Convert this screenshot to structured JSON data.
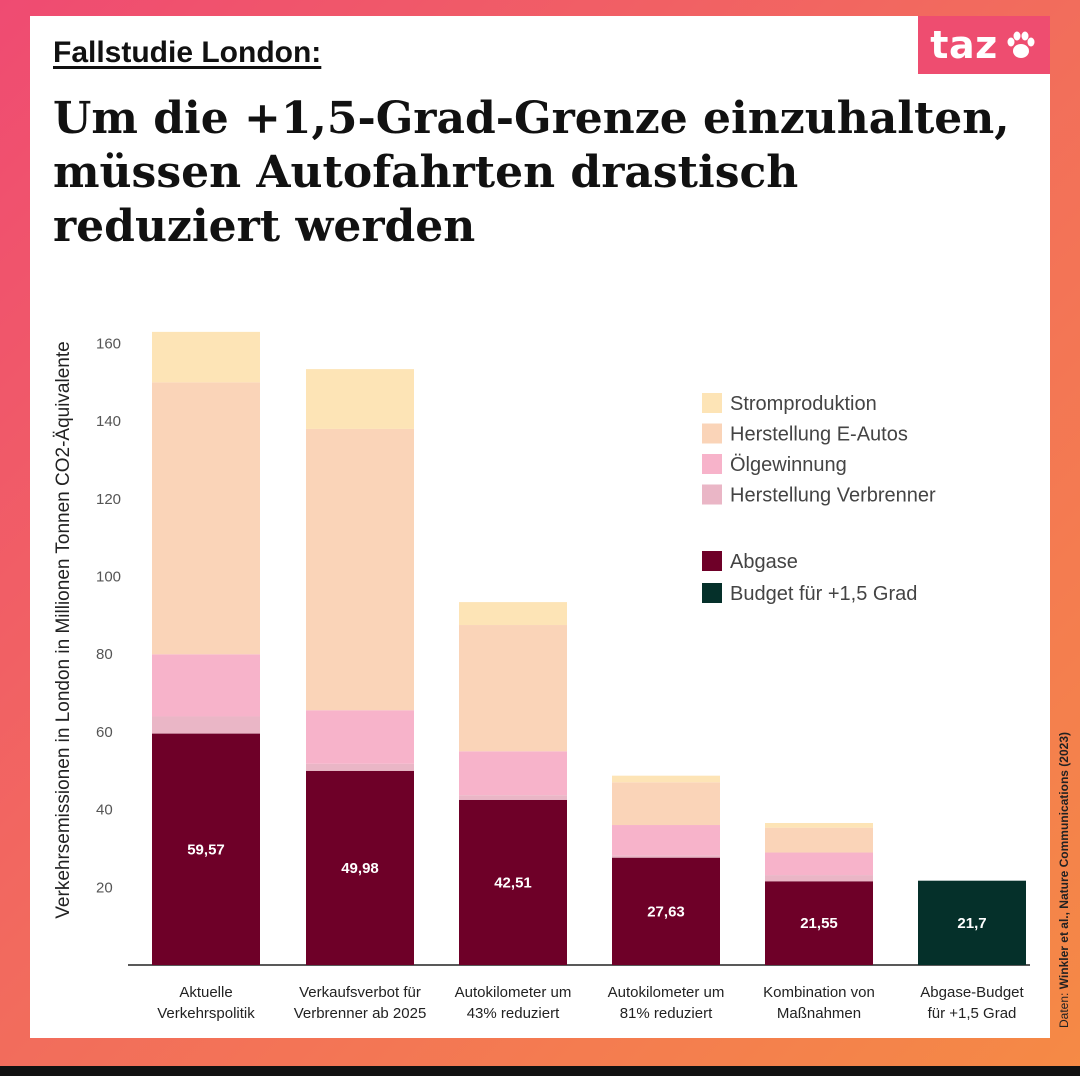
{
  "header": {
    "kicker": "Fallstudie London:",
    "headline_lines": [
      "Um die +1,5-Grad-Grenze einzuhalten,",
      "müssen Autofahrten drastisch",
      "reduziert werden"
    ],
    "logo_text": "taz"
  },
  "source": {
    "prefix": "Daten: ",
    "citation": "Winkler et al., Nature Communications (2023)"
  },
  "chart_data": {
    "type": "bar",
    "stacked": true,
    "ylabel": "Verkehrsemissionen in London in Millionen Tonnen CO2-Äquivalente",
    "ylim": [
      0,
      165
    ],
    "yticks": [
      20,
      40,
      60,
      80,
      100,
      120,
      140,
      160
    ],
    "categories": [
      [
        "Aktuelle",
        "Verkehrspolitik"
      ],
      [
        "Verkaufsverbot für",
        "Verbrenner ab 2025"
      ],
      [
        "Autokilometer um",
        "43% reduziert"
      ],
      [
        "Autokilometer um",
        "81% reduziert"
      ],
      [
        "Kombination von",
        "Maßnahmen"
      ],
      [
        "Abgase-Budget",
        "für +1,5 Grad"
      ]
    ],
    "series": [
      {
        "name": "Abgase",
        "color": "#6e0028",
        "values": [
          59.57,
          49.98,
          42.51,
          27.63,
          21.55,
          null
        ]
      },
      {
        "name": "Herstellung Verbrenner",
        "color": "#eab6c6",
        "values": [
          4.4,
          1.8,
          1.2,
          0.6,
          1.6,
          null
        ]
      },
      {
        "name": "Ölgewinnung",
        "color": "#f7b3ca",
        "values": [
          16.0,
          13.8,
          11.3,
          7.8,
          5.8,
          null
        ]
      },
      {
        "name": "Herstellung E-Autos",
        "color": "#fad4b8",
        "values": [
          70.0,
          72.4,
          32.5,
          11.0,
          6.4,
          null
        ]
      },
      {
        "name": "Stromproduktion",
        "color": "#fde4b6",
        "values": [
          13.0,
          15.4,
          5.9,
          1.7,
          1.2,
          null
        ]
      },
      {
        "name": "Budget für +1,5 Grad",
        "color": "#05302a",
        "values": [
          null,
          null,
          null,
          null,
          null,
          21.7
        ]
      }
    ],
    "value_labels": [
      "59,57",
      "49,98",
      "42,51",
      "27,63",
      "21,55",
      "21,7"
    ],
    "legend": {
      "group1": [
        "Stromproduktion",
        "Herstellung E-Autos",
        "Ölgewinnung",
        "Herstellung Verbrenner"
      ],
      "group2": [
        "Abgase",
        "Budget für +1,5 Grad"
      ],
      "placement": "top-right"
    },
    "grid": false
  }
}
